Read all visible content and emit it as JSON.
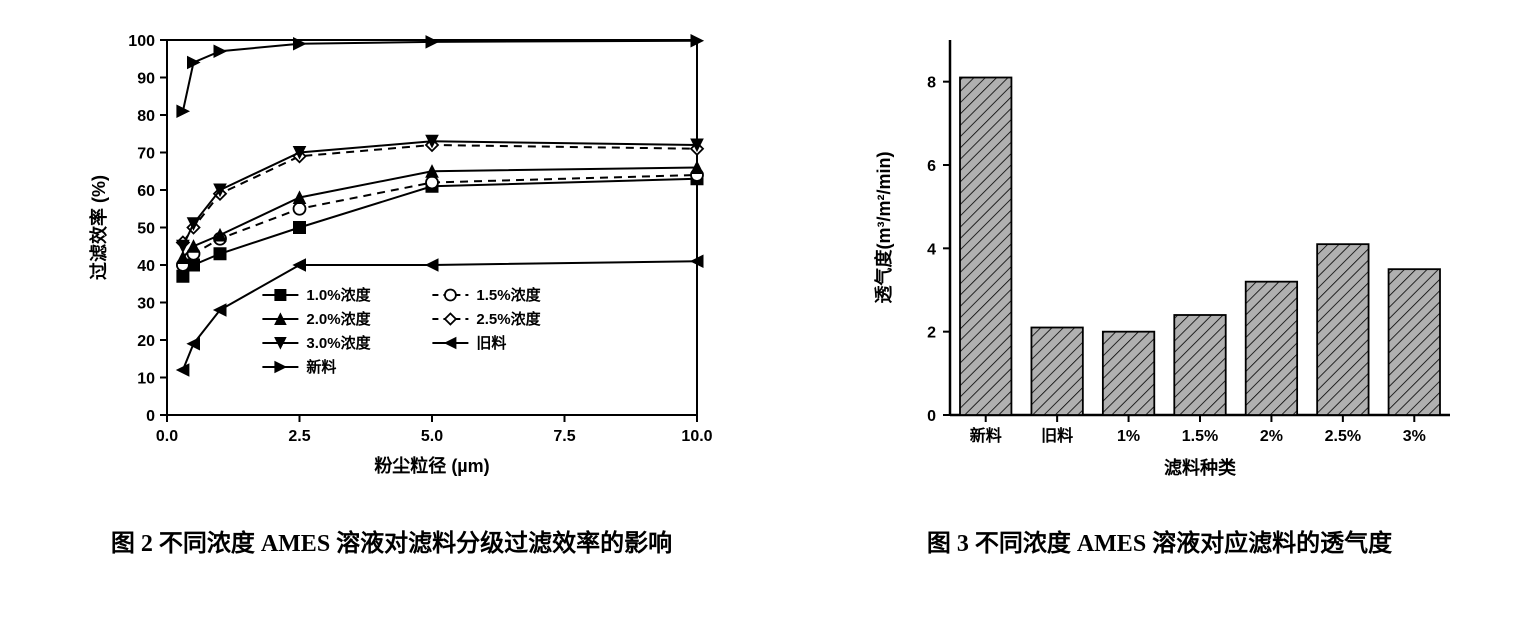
{
  "line_chart": {
    "type": "line",
    "caption": "图 2 不同浓度 AMES 溶液对滤料分级过滤效率的影响",
    "xlabel": "粉尘粒径 (µm)",
    "ylabel": "过滤效率 (%)",
    "xlim": [
      0,
      10
    ],
    "ylim": [
      0,
      100
    ],
    "xticks": [
      0.0,
      2.5,
      5.0,
      7.5,
      10.0
    ],
    "xtick_labels": [
      "0.0",
      "2.5",
      "5.0",
      "7.5",
      "10.0"
    ],
    "yticks": [
      0,
      10,
      20,
      30,
      40,
      50,
      60,
      70,
      80,
      90,
      100
    ],
    "plot_bg": "#ffffff",
    "axis_color": "#000000",
    "tick_fontsize": 16,
    "label_fontsize": 18,
    "line_width": 2,
    "marker_size": 6,
    "x_points": [
      0.3,
      0.5,
      1.0,
      2.5,
      5.0,
      10.0
    ],
    "series": [
      {
        "key": "c10",
        "label": "1.0%浓度",
        "marker": "square_filled",
        "dash": "solid",
        "y": [
          37,
          40,
          43,
          50,
          61,
          63
        ]
      },
      {
        "key": "c15",
        "label": "1.5%浓度",
        "marker": "circle_open",
        "dash": "dashed",
        "y": [
          40,
          43,
          47,
          55,
          62,
          64
        ]
      },
      {
        "key": "c20",
        "label": "2.0%浓度",
        "marker": "triangle_filled",
        "dash": "solid",
        "y": [
          42,
          45,
          48,
          58,
          65,
          66
        ]
      },
      {
        "key": "c25",
        "label": "2.5%浓度",
        "marker": "diamond_open",
        "dash": "dashed",
        "y": [
          46,
          50,
          59,
          69,
          72,
          71
        ]
      },
      {
        "key": "c30",
        "label": "3.0%浓度",
        "marker": "tri_down_filled",
        "dash": "solid",
        "y": [
          45,
          51,
          60,
          70,
          73,
          72
        ]
      },
      {
        "key": "old",
        "label": "旧料",
        "marker": "tri_left_filled",
        "dash": "solid",
        "y": [
          12,
          19,
          28,
          40,
          40,
          41
        ]
      },
      {
        "key": "new",
        "label": "新料",
        "marker": "tri_right_filled",
        "dash": "solid",
        "y": [
          81,
          94,
          97,
          99,
          99.5,
          99.8
        ]
      }
    ],
    "series_color": "#000000",
    "legend": {
      "rows": [
        [
          {
            "series": "c10"
          },
          {
            "series": "c15"
          }
        ],
        [
          {
            "series": "c20"
          },
          {
            "series": "c25"
          }
        ],
        [
          {
            "series": "c30"
          },
          {
            "series": "old"
          }
        ],
        [
          {
            "series": "new"
          }
        ]
      ],
      "fontsize": 15
    }
  },
  "bar_chart": {
    "type": "bar",
    "caption": "图 3 不同浓度 AMES 溶液对应滤料的透气度",
    "xlabel": "滤料种类",
    "ylabel": "透气度(m³/m²/min)",
    "ylim": [
      0,
      9
    ],
    "yticks": [
      0,
      2,
      4,
      6,
      8
    ],
    "categories": [
      "新料",
      "旧料",
      "1%",
      "1.5%",
      "2%",
      "2.5%",
      "3%"
    ],
    "values": [
      8.1,
      2.1,
      2.0,
      2.4,
      3.2,
      4.1,
      3.5
    ],
    "bar_fill": "#b0b0b0",
    "bar_border": "#000000",
    "hatch": "diagonal",
    "hatch_color": "#000000",
    "bar_width_ratio": 0.72,
    "axis_color": "#000000",
    "tick_fontsize": 16,
    "label_fontsize": 18,
    "plot_bg": "#ffffff"
  }
}
